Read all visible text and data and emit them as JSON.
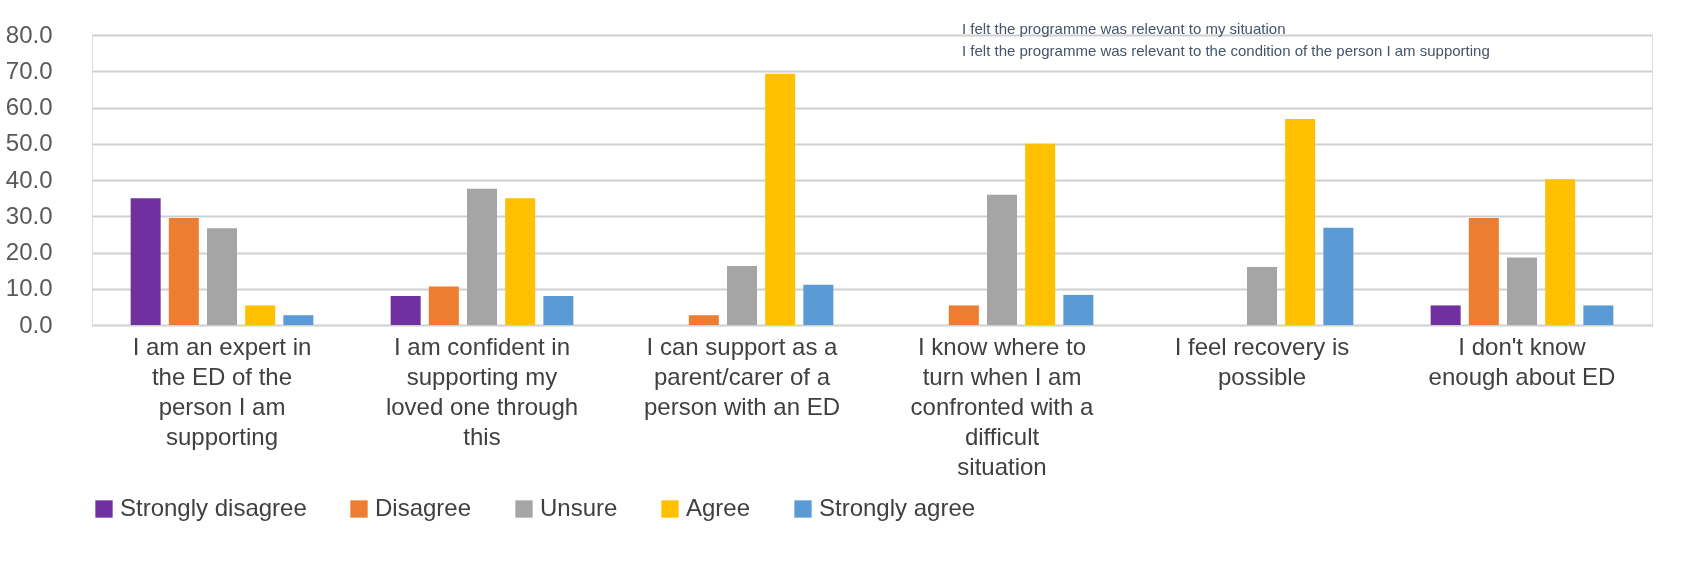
{
  "chart_data": {
    "type": "bar",
    "categories": [
      "I am an expert in the ED of the person I am supporting",
      "I am confident in supporting my loved one through this",
      "I can support as a parent/carer of a person with an ED",
      "I know where to turn when I am confronted with a difficult situation",
      "I feel recovery is possible",
      "I don't know enough about ED"
    ],
    "series": [
      {
        "name": "Strongly disagree",
        "color": "#7030a0",
        "values": [
          35.0,
          8.0,
          null,
          null,
          null,
          5.4
        ]
      },
      {
        "name": "Disagree",
        "color": "#ed7d31",
        "values": [
          29.5,
          10.6,
          2.7,
          5.4,
          null,
          29.5
        ]
      },
      {
        "name": "Unsure",
        "color": "#a5a5a5",
        "values": [
          26.7,
          37.6,
          16.3,
          35.9,
          16.0,
          18.6
        ]
      },
      {
        "name": "Agree",
        "color": "#ffc000",
        "values": [
          5.4,
          35.0,
          69.3,
          50.0,
          56.8,
          40.2
        ]
      },
      {
        "name": "Strongly agree",
        "color": "#5b9bd5",
        "values": [
          2.7,
          8.0,
          11.1,
          8.3,
          26.8,
          5.4
        ]
      }
    ],
    "ylim": [
      0,
      80
    ],
    "yticks": [
      {
        "value": 0,
        "label": "0.0"
      },
      {
        "value": 10,
        "label": "10.0"
      },
      {
        "value": 20,
        "label": "20.0"
      },
      {
        "value": 30,
        "label": "30.0"
      },
      {
        "value": 40,
        "label": "40.0"
      },
      {
        "value": 50,
        "label": "50.0"
      },
      {
        "value": 60,
        "label": "60.0"
      },
      {
        "value": 70,
        "label": "70.0"
      },
      {
        "value": 80,
        "label": "80.0"
      }
    ],
    "grid": "y",
    "legend": "bottom",
    "annotations": [
      "I felt the programme was relevant to my situation",
      "I felt the programme was relevant to the condition of the person I am supporting"
    ]
  }
}
